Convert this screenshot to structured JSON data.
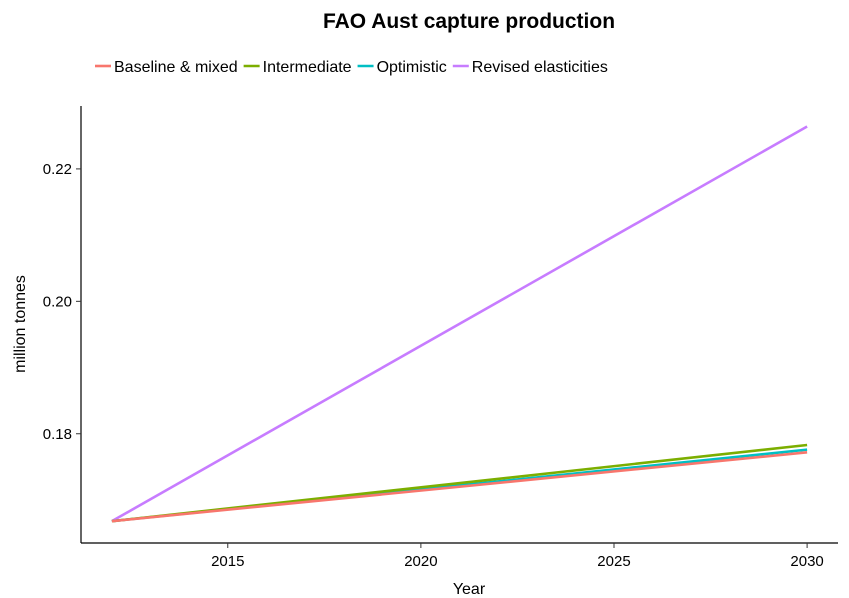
{
  "chart_data": {
    "type": "line",
    "title": "FAO Aust capture production",
    "xlabel": "Year",
    "ylabel": "million tonnes",
    "x": [
      2012,
      2030
    ],
    "xlim": [
      2011.2,
      2030.8
    ],
    "ylim": [
      0.1635,
      0.2295
    ],
    "xticks": [
      2015,
      2020,
      2025,
      2030
    ],
    "yticks": [
      0.18,
      0.2,
      0.22
    ],
    "xtick_labels": [
      "2015",
      "2020",
      "2025",
      "2030"
    ],
    "ytick_labels": [
      "0.18",
      "0.20",
      "0.22"
    ],
    "grid": false,
    "legend_position": "top",
    "series": [
      {
        "name": "Baseline & mixed",
        "color": "#F8766D",
        "values": [
          0.1668,
          0.1772
        ]
      },
      {
        "name": "Intermediate",
        "color": "#7CAE00",
        "values": [
          0.1668,
          0.1783
        ]
      },
      {
        "name": "Optimistic",
        "color": "#00BFC4",
        "values": [
          0.1668,
          0.1776
        ]
      },
      {
        "name": "Revised elasticities",
        "color": "#C77CFF",
        "values": [
          0.1668,
          0.2264
        ]
      }
    ]
  }
}
